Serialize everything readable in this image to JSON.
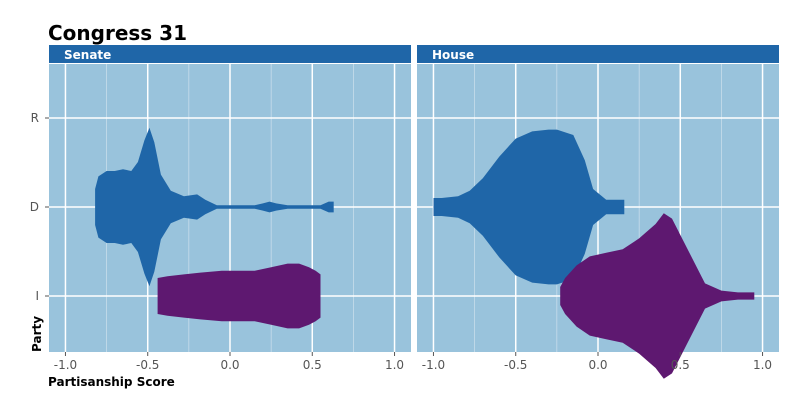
{
  "chart_data": {
    "type": "violin",
    "title": "Congress 31",
    "xlabel": "Partisanship Score",
    "ylabel": "Party",
    "x_ticks": [
      "-1.0",
      "-0.5",
      "0.0",
      "0.5",
      "1.0"
    ],
    "x_range": [
      -1.1,
      1.1
    ],
    "y_categories": [
      "R",
      "D",
      "I"
    ],
    "grid": true,
    "colors": {
      "panel_bg": "#99c3dc",
      "strip_bg": "#1f66a8",
      "grid": "#ffffff",
      "D": "#1f66a8",
      "I": "#5e1870"
    },
    "panels": [
      {
        "name": "Senate",
        "violins": [
          {
            "party": "D",
            "profile": [
              [
                -0.82,
                0.1
              ],
              [
                -0.8,
                0.17
              ],
              [
                -0.75,
                0.2
              ],
              [
                -0.7,
                0.2
              ],
              [
                -0.65,
                0.21
              ],
              [
                -0.6,
                0.2
              ],
              [
                -0.56,
                0.25
              ],
              [
                -0.52,
                0.37
              ],
              [
                -0.49,
                0.44
              ],
              [
                -0.46,
                0.36
              ],
              [
                -0.42,
                0.18
              ],
              [
                -0.36,
                0.09
              ],
              [
                -0.28,
                0.06
              ],
              [
                -0.2,
                0.07
              ],
              [
                -0.15,
                0.04
              ],
              [
                -0.08,
                0.01
              ],
              [
                0.05,
                0.01
              ],
              [
                0.15,
                0.01
              ],
              [
                0.2,
                0.02
              ],
              [
                0.24,
                0.03
              ],
              [
                0.28,
                0.02
              ],
              [
                0.35,
                0.01
              ],
              [
                0.45,
                0.01
              ],
              [
                0.55,
                0.01
              ],
              [
                0.6,
                0.03
              ],
              [
                0.63,
                0.03
              ]
            ]
          },
          {
            "party": "I",
            "profile": [
              [
                -0.44,
                0.1
              ],
              [
                -0.38,
                0.11
              ],
              [
                -0.28,
                0.12
              ],
              [
                -0.18,
                0.13
              ],
              [
                -0.05,
                0.14
              ],
              [
                0.05,
                0.14
              ],
              [
                0.15,
                0.14
              ],
              [
                0.25,
                0.16
              ],
              [
                0.35,
                0.18
              ],
              [
                0.42,
                0.18
              ],
              [
                0.48,
                0.16
              ],
              [
                0.52,
                0.14
              ],
              [
                0.55,
                0.12
              ],
              [
                0.55,
                0.1
              ]
            ]
          }
        ]
      },
      {
        "name": "House",
        "violins": [
          {
            "party": "D",
            "profile": [
              [
                -1.0,
                0.05
              ],
              [
                -0.95,
                0.05
              ],
              [
                -0.85,
                0.06
              ],
              [
                -0.78,
                0.09
              ],
              [
                -0.7,
                0.16
              ],
              [
                -0.6,
                0.28
              ],
              [
                -0.5,
                0.38
              ],
              [
                -0.4,
                0.42
              ],
              [
                -0.3,
                0.43
              ],
              [
                -0.25,
                0.43
              ],
              [
                -0.15,
                0.4
              ],
              [
                -0.08,
                0.26
              ],
              [
                -0.03,
                0.1
              ],
              [
                0.05,
                0.04
              ],
              [
                0.12,
                0.04
              ],
              [
                0.16,
                0.04
              ]
            ]
          },
          {
            "party": "I",
            "profile": [
              [
                -0.23,
                0.05
              ],
              [
                -0.2,
                0.1
              ],
              [
                -0.13,
                0.17
              ],
              [
                -0.05,
                0.22
              ],
              [
                0.05,
                0.24
              ],
              [
                0.15,
                0.26
              ],
              [
                0.25,
                0.32
              ],
              [
                0.35,
                0.4
              ],
              [
                0.4,
                0.46
              ],
              [
                0.45,
                0.43
              ],
              [
                0.55,
                0.25
              ],
              [
                0.65,
                0.07
              ],
              [
                0.75,
                0.03
              ],
              [
                0.85,
                0.02
              ],
              [
                0.95,
                0.02
              ]
            ]
          }
        ]
      }
    ]
  }
}
